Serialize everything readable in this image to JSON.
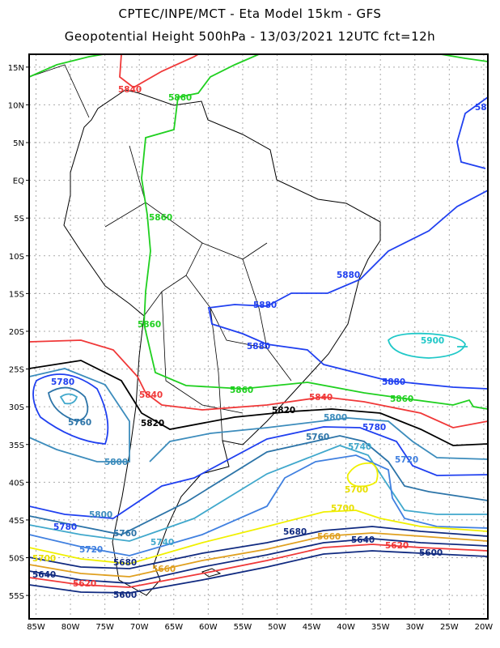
{
  "header": {
    "title_line1": "CPTEC/INPE/MCT -  Eta Model 15km - GFS",
    "title_line2": "Geopotential Height 500hPa - 13/03/2021 12UTC fct=12h"
  },
  "map": {
    "lon_range": [
      -86,
      -19.4
    ],
    "lat_range": [
      -58.1,
      16.7
    ],
    "lon_ticks": [
      "85W",
      "80W",
      "75W",
      "70W",
      "65W",
      "60W",
      "55W",
      "50W",
      "45W",
      "40W",
      "35W",
      "30W",
      "25W",
      "20W"
    ],
    "lat_ticks": [
      "15N",
      "10N",
      "5N",
      "EQ",
      "5S",
      "10S",
      "15S",
      "20S",
      "25S",
      "30S",
      "35S",
      "40S",
      "45S",
      "50S",
      "55S"
    ],
    "contour_labels": {
      "c5900": "5900",
      "c5880": "5880",
      "c5860": "5860",
      "c5840": "5840",
      "c5820": "5820",
      "c5800": "5800",
      "c5780": "5780",
      "c5760": "5760",
      "c5740": "5740",
      "c5720": "5720",
      "c5700": "5700",
      "c5680": "5680",
      "c5660": "5660",
      "c5640": "5640",
      "c5620": "5620",
      "c5600": "5600",
      "c58_partial": "58"
    },
    "contour_colors": {
      "5900": "#20c8c8",
      "5880": "#2040f0",
      "5860": "#20d020",
      "5840": "#f03838",
      "5820": "#000000",
      "5800": "#3c8cbc",
      "5780": "#2040f0",
      "5760": "#2c74a8",
      "5740": "#40a8cc",
      "5720": "#4080e0",
      "5700": "#f0f000",
      "5680": "#102a80",
      "5660": "#e0a020",
      "5640": "#102a80",
      "5620": "#f03838",
      "5600": "#102a80"
    }
  }
}
